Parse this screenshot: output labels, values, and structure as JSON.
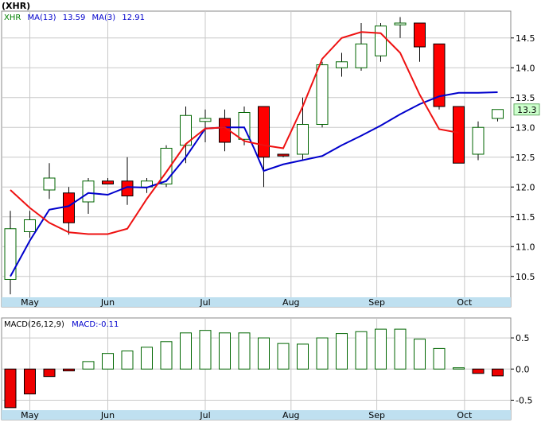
{
  "chart_data": [
    {
      "type": "candlestick",
      "symbol": "(XHR)",
      "legend": [
        {
          "text": "XHR",
          "color": "#008000"
        },
        {
          "text": "MA(13)",
          "color": "#0000cc"
        },
        {
          "text": "13.59",
          "color": "#0000cc"
        },
        {
          "text": "MA(3)",
          "color": "#0000cc"
        },
        {
          "text": "12.91",
          "color": "#0000cc"
        }
      ],
      "last_price_label": "13.3",
      "y_ticks": [
        "14.5",
        "14.0",
        "13.5",
        "13.0",
        "12.5",
        "12.0",
        "11.5",
        "11.0",
        "10.5"
      ],
      "ylim": [
        10.15,
        14.95
      ],
      "x_labels": [
        "May",
        "Jun",
        "Jul",
        "Aug",
        "Sep",
        "Oct"
      ],
      "candles": [
        {
          "o": 10.45,
          "h": 11.6,
          "l": 10.2,
          "c": 11.3
        },
        {
          "o": 11.25,
          "h": 11.6,
          "l": 11.15,
          "c": 11.45
        },
        {
          "o": 11.95,
          "h": 12.4,
          "l": 11.8,
          "c": 12.15
        },
        {
          "o": 11.9,
          "h": 12.0,
          "l": 11.2,
          "c": 11.4
        },
        {
          "o": 11.75,
          "h": 12.15,
          "l": 11.55,
          "c": 12.1
        },
        {
          "o": 12.1,
          "h": 12.15,
          "l": 12.05,
          "c": 12.05
        },
        {
          "o": 12.1,
          "h": 12.5,
          "l": 11.7,
          "c": 11.85
        },
        {
          "o": 12.0,
          "h": 12.15,
          "l": 11.9,
          "c": 12.1
        },
        {
          "o": 12.05,
          "h": 12.7,
          "l": 12.0,
          "c": 12.65
        },
        {
          "o": 12.7,
          "h": 13.35,
          "l": 12.4,
          "c": 13.2
        },
        {
          "o": 13.1,
          "h": 13.3,
          "l": 12.75,
          "c": 13.15
        },
        {
          "o": 13.15,
          "h": 13.3,
          "l": 12.6,
          "c": 12.75
        },
        {
          "o": 12.8,
          "h": 13.35,
          "l": 12.7,
          "c": 13.25
        },
        {
          "o": 13.35,
          "h": 13.35,
          "l": 12.0,
          "c": 12.5
        },
        {
          "o": 12.55,
          "h": 12.55,
          "l": 12.5,
          "c": 12.52
        },
        {
          "o": 12.55,
          "h": 13.5,
          "l": 12.45,
          "c": 13.05
        },
        {
          "o": 13.05,
          "h": 14.1,
          "l": 13.0,
          "c": 14.05
        },
        {
          "o": 14.0,
          "h": 14.25,
          "l": 13.85,
          "c": 14.1
        },
        {
          "o": 14.0,
          "h": 14.75,
          "l": 13.95,
          "c": 14.4
        },
        {
          "o": 14.2,
          "h": 14.75,
          "l": 14.1,
          "c": 14.7
        },
        {
          "o": 14.72,
          "h": 14.85,
          "l": 14.5,
          "c": 14.75
        },
        {
          "o": 14.75,
          "h": 14.75,
          "l": 14.1,
          "c": 14.35
        },
        {
          "o": 14.4,
          "h": 14.4,
          "l": 13.3,
          "c": 13.35
        },
        {
          "o": 13.35,
          "h": 13.35,
          "l": 12.4,
          "c": 12.4
        },
        {
          "o": 12.55,
          "h": 13.1,
          "l": 12.45,
          "c": 13.0
        },
        {
          "o": 13.15,
          "h": 13.3,
          "l": 13.1,
          "c": 13.3
        }
      ],
      "ma13": [
        10.5,
        11.1,
        11.62,
        11.68,
        11.9,
        11.87,
        12.0,
        11.99,
        12.1,
        12.5,
        12.98,
        13.0,
        13.0,
        12.65,
        12.27,
        12.38,
        12.45,
        12.52,
        12.7,
        12.86,
        13.03,
        13.22,
        13.39,
        13.52,
        13.58,
        13.58,
        13.59
      ],
      "ma13_x": [
        0,
        1,
        2,
        3,
        4,
        5,
        6,
        7,
        8,
        9,
        10,
        11,
        12,
        12.5,
        13,
        14,
        15,
        16,
        17,
        18,
        19,
        20,
        21,
        22,
        23,
        24,
        25
      ],
      "ma3": [
        11.95,
        11.65,
        11.4,
        11.24,
        11.21,
        11.21,
        11.3,
        11.8,
        12.25,
        12.72,
        12.98,
        13.0,
        12.77,
        12.7,
        12.65,
        13.35,
        14.15,
        14.5,
        14.6,
        14.58,
        14.25,
        13.55,
        12.97,
        12.91
      ],
      "ma3_x": [
        0,
        1,
        2,
        3,
        4,
        5,
        6,
        7,
        8,
        9,
        10,
        11,
        12,
        13,
        14,
        15,
        16,
        17,
        18,
        19,
        20,
        21,
        22,
        23
      ]
    },
    {
      "type": "bar",
      "title_left": "MACD(26,12,9)",
      "title_right": "MACD:-0.11",
      "y_ticks": [
        "0.5",
        "0.0",
        "-0.5"
      ],
      "ylim": [
        -0.66,
        0.82
      ],
      "values": [
        -0.62,
        -0.4,
        -0.12,
        -0.03,
        0.12,
        0.25,
        0.29,
        0.35,
        0.44,
        0.58,
        0.62,
        0.58,
        0.58,
        0.5,
        0.41,
        0.4,
        0.5,
        0.57,
        0.6,
        0.64,
        0.64,
        0.48,
        0.33,
        0.02,
        -0.07,
        -0.11
      ]
    }
  ]
}
